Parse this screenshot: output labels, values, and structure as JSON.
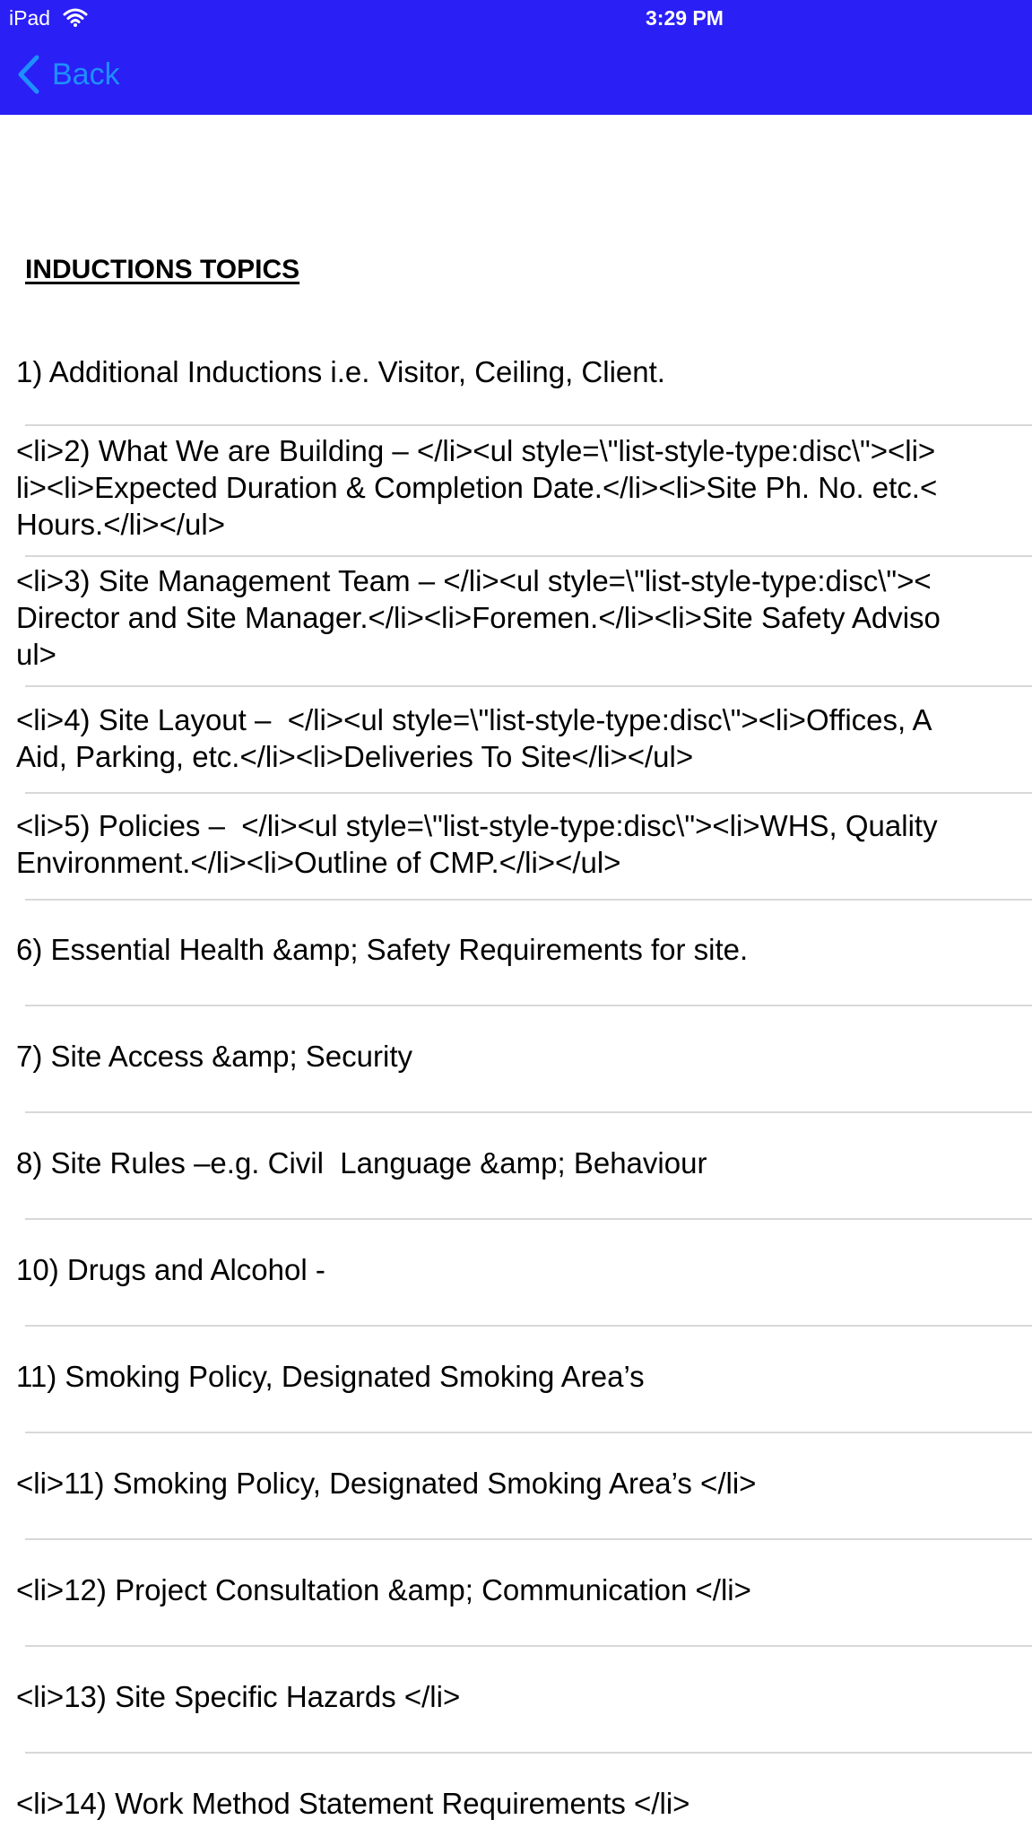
{
  "status_bar": {
    "carrier": "iPad",
    "time": "3:29 PM"
  },
  "nav": {
    "back_label": "Back",
    "background": "#2a1ff5",
    "accent": "#1e8fff"
  },
  "page": {
    "heading": "INDUCTIONS TOPICS"
  },
  "topics": [
    "1) Additional Inductions i.e. Visitor, Ceiling, Client.",
    "<li>2) What We are Building – </li><ul style=\\\"list-style-type:disc\\\"><li>\nli><li>Expected Duration & Completion Date.</li><li>Site Ph. No. etc.<\nHours.</li></ul>",
    "<li>3) Site Management Team – </li><ul style=\\\"list-style-type:disc\\\"><\nDirector and Site Manager.</li><li>Foremen.</li><li>Site Safety Adviso\nul>",
    "<li>4) Site Layout –  </li><ul style=\\\"list-style-type:disc\\\"><li>Offices, A\nAid, Parking, etc.</li><li>Deliveries To Site</li></ul>",
    "<li>5) Policies –  </li><ul style=\\\"list-style-type:disc\\\"><li>WHS, Quality\nEnvironment.</li><li>Outline of CMP.</li></ul>",
    "6) Essential Health &amp; Safety Requirements for site.",
    "7) Site Access &amp; Security",
    "8) Site Rules –e.g. Civil  Language &amp; Behaviour",
    "10) Drugs and Alcohol -",
    "11) Smoking Policy, Designated Smoking Area’s",
    "<li>11) Smoking Policy, Designated Smoking Area’s </li>",
    "<li>12) Project Consultation &amp; Communication </li>",
    "<li>13) Site Specific Hazards </li>",
    "<li>14) Work Method Statement Requirements </li>"
  ]
}
